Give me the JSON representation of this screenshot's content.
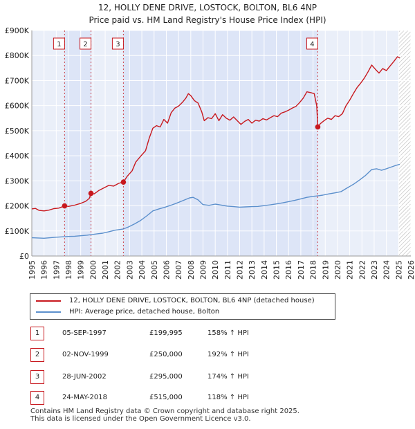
{
  "chart_data": {
    "type": "line",
    "title_line1": "12, HOLLY DENE DRIVE, LOSTOCK, BOLTON, BL6 4NP",
    "title_line2": "Price paid vs. HM Land Registry's House Price Index (HPI)",
    "xlim": [
      1995,
      2026
    ],
    "ylim": [
      0,
      900000
    ],
    "x_ticks": [
      1995,
      1996,
      1997,
      1998,
      1999,
      2000,
      2001,
      2002,
      2003,
      2004,
      2005,
      2006,
      2007,
      2008,
      2009,
      2010,
      2011,
      2012,
      2013,
      2014,
      2015,
      2016,
      2017,
      2018,
      2019,
      2020,
      2021,
      2022,
      2023,
      2024,
      2025,
      2026
    ],
    "y_ticks": [
      {
        "value": 0,
        "label": "£0"
      },
      {
        "value": 100000,
        "label": "£100K"
      },
      {
        "value": 200000,
        "label": "£200K"
      },
      {
        "value": 300000,
        "label": "£300K"
      },
      {
        "value": 400000,
        "label": "£400K"
      },
      {
        "value": 500000,
        "label": "£500K"
      },
      {
        "value": 600000,
        "label": "£600K"
      },
      {
        "value": 700000,
        "label": "£700K"
      },
      {
        "value": 800000,
        "label": "£800K"
      },
      {
        "value": 900000,
        "label": "£900K"
      }
    ],
    "shaded_ranges": [
      [
        1997.68,
        1999.84
      ],
      [
        2002.49,
        2018.39
      ]
    ],
    "hatched_from": 2025.0,
    "series": [
      {
        "name": "12, HOLLY DENE DRIVE, LOSTOCK, BOLTON, BL6 4NP (detached house)",
        "color": "#c8181e",
        "points": [
          [
            1995.0,
            188000
          ],
          [
            1995.3,
            190000
          ],
          [
            1995.6,
            182000
          ],
          [
            1996.0,
            180000
          ],
          [
            1996.4,
            183000
          ],
          [
            1996.8,
            189000
          ],
          [
            1997.2,
            191000
          ],
          [
            1997.68,
            199995
          ],
          [
            1998.0,
            198000
          ],
          [
            1998.5,
            203000
          ],
          [
            1999.0,
            210000
          ],
          [
            1999.4,
            218000
          ],
          [
            1999.7,
            230000
          ],
          [
            1999.84,
            250000
          ],
          [
            2000.1,
            248000
          ],
          [
            2000.5,
            262000
          ],
          [
            2000.9,
            272000
          ],
          [
            2001.3,
            282000
          ],
          [
            2001.7,
            279000
          ],
          [
            2002.1,
            290000
          ],
          [
            2002.49,
            295000
          ],
          [
            2002.8,
            318000
          ],
          [
            2003.2,
            340000
          ],
          [
            2003.5,
            375000
          ],
          [
            2003.9,
            398000
          ],
          [
            2004.3,
            420000
          ],
          [
            2004.6,
            470000
          ],
          [
            2004.9,
            510000
          ],
          [
            2005.2,
            520000
          ],
          [
            2005.5,
            515000
          ],
          [
            2005.8,
            545000
          ],
          [
            2006.1,
            530000
          ],
          [
            2006.4,
            572000
          ],
          [
            2006.7,
            590000
          ],
          [
            2007.0,
            598000
          ],
          [
            2007.3,
            612000
          ],
          [
            2007.6,
            630000
          ],
          [
            2007.8,
            648000
          ],
          [
            2008.0,
            640000
          ],
          [
            2008.3,
            620000
          ],
          [
            2008.6,
            610000
          ],
          [
            2008.9,
            575000
          ],
          [
            2009.1,
            540000
          ],
          [
            2009.4,
            552000
          ],
          [
            2009.7,
            548000
          ],
          [
            2010.0,
            568000
          ],
          [
            2010.3,
            540000
          ],
          [
            2010.6,
            564000
          ],
          [
            2010.9,
            550000
          ],
          [
            2011.2,
            542000
          ],
          [
            2011.5,
            555000
          ],
          [
            2011.8,
            540000
          ],
          [
            2012.1,
            525000
          ],
          [
            2012.4,
            537000
          ],
          [
            2012.7,
            545000
          ],
          [
            2013.0,
            530000
          ],
          [
            2013.3,
            542000
          ],
          [
            2013.6,
            538000
          ],
          [
            2013.9,
            548000
          ],
          [
            2014.2,
            543000
          ],
          [
            2014.5,
            552000
          ],
          [
            2014.8,
            560000
          ],
          [
            2015.1,
            556000
          ],
          [
            2015.4,
            570000
          ],
          [
            2015.7,
            575000
          ],
          [
            2016.0,
            582000
          ],
          [
            2016.3,
            590000
          ],
          [
            2016.6,
            597000
          ],
          [
            2016.9,
            612000
          ],
          [
            2017.2,
            630000
          ],
          [
            2017.5,
            655000
          ],
          [
            2017.8,
            652000
          ],
          [
            2018.1,
            648000
          ],
          [
            2018.3,
            600000
          ],
          [
            2018.39,
            515000
          ],
          [
            2018.6,
            528000
          ],
          [
            2018.9,
            540000
          ],
          [
            2019.2,
            550000
          ],
          [
            2019.5,
            545000
          ],
          [
            2019.8,
            560000
          ],
          [
            2020.1,
            556000
          ],
          [
            2020.4,
            568000
          ],
          [
            2020.7,
            600000
          ],
          [
            2021.0,
            622000
          ],
          [
            2021.3,
            648000
          ],
          [
            2021.6,
            672000
          ],
          [
            2021.9,
            690000
          ],
          [
            2022.2,
            710000
          ],
          [
            2022.5,
            735000
          ],
          [
            2022.8,
            762000
          ],
          [
            2023.1,
            745000
          ],
          [
            2023.4,
            730000
          ],
          [
            2023.7,
            748000
          ],
          [
            2024.0,
            740000
          ],
          [
            2024.3,
            758000
          ],
          [
            2024.6,
            776000
          ],
          [
            2024.9,
            795000
          ],
          [
            2025.1,
            790000
          ]
        ]
      },
      {
        "name": "HPI: Average price, detached house, Bolton",
        "color": "#5b8fcc",
        "points": [
          [
            1995.0,
            73000
          ],
          [
            1995.5,
            72000
          ],
          [
            1996.0,
            71000
          ],
          [
            1996.5,
            73000
          ],
          [
            1997.0,
            75000
          ],
          [
            1997.68,
            77000
          ],
          [
            1998.0,
            78000
          ],
          [
            1998.5,
            79000
          ],
          [
            1999.0,
            81000
          ],
          [
            1999.5,
            83000
          ],
          [
            1999.84,
            85000
          ],
          [
            2000.3,
            88000
          ],
          [
            2000.8,
            91000
          ],
          [
            2001.3,
            97000
          ],
          [
            2001.8,
            103000
          ],
          [
            2002.49,
            108000
          ],
          [
            2002.9,
            116000
          ],
          [
            2003.4,
            128000
          ],
          [
            2003.9,
            142000
          ],
          [
            2004.4,
            160000
          ],
          [
            2004.9,
            180000
          ],
          [
            2005.4,
            188000
          ],
          [
            2005.9,
            195000
          ],
          [
            2006.4,
            203000
          ],
          [
            2006.9,
            212000
          ],
          [
            2007.4,
            222000
          ],
          [
            2007.9,
            232000
          ],
          [
            2008.2,
            234000
          ],
          [
            2008.6,
            224000
          ],
          [
            2009.0,
            205000
          ],
          [
            2009.5,
            202000
          ],
          [
            2010.0,
            207000
          ],
          [
            2010.5,
            203000
          ],
          [
            2011.0,
            199000
          ],
          [
            2011.5,
            197000
          ],
          [
            2012.0,
            195000
          ],
          [
            2012.5,
            196000
          ],
          [
            2013.0,
            197000
          ],
          [
            2013.5,
            198000
          ],
          [
            2014.0,
            201000
          ],
          [
            2014.5,
            204000
          ],
          [
            2015.0,
            208000
          ],
          [
            2015.5,
            212000
          ],
          [
            2016.0,
            217000
          ],
          [
            2016.5,
            222000
          ],
          [
            2017.0,
            228000
          ],
          [
            2017.5,
            234000
          ],
          [
            2018.0,
            238000
          ],
          [
            2018.39,
            240000
          ],
          [
            2018.8,
            243000
          ],
          [
            2019.3,
            248000
          ],
          [
            2019.8,
            252000
          ],
          [
            2020.3,
            257000
          ],
          [
            2020.8,
            272000
          ],
          [
            2021.3,
            286000
          ],
          [
            2021.8,
            303000
          ],
          [
            2022.3,
            322000
          ],
          [
            2022.8,
            345000
          ],
          [
            2023.2,
            348000
          ],
          [
            2023.6,
            342000
          ],
          [
            2024.0,
            348000
          ],
          [
            2024.4,
            355000
          ],
          [
            2024.8,
            362000
          ],
          [
            2025.1,
            366000
          ]
        ]
      }
    ],
    "markers": [
      {
        "label": "1",
        "x": 1997.68,
        "y": 199995
      },
      {
        "label": "2",
        "x": 1999.84,
        "y": 250000
      },
      {
        "label": "3",
        "x": 2002.49,
        "y": 295000
      },
      {
        "label": "4",
        "x": 2018.39,
        "y": 515000
      }
    ]
  },
  "transactions": [
    {
      "num": "1",
      "date": "05-SEP-1997",
      "price": "£199,995",
      "hpi": "158% ↑ HPI"
    },
    {
      "num": "2",
      "date": "02-NOV-1999",
      "price": "£250,000",
      "hpi": "192% ↑ HPI"
    },
    {
      "num": "3",
      "date": "28-JUN-2002",
      "price": "£295,000",
      "hpi": "174% ↑ HPI"
    },
    {
      "num": "4",
      "date": "24-MAY-2018",
      "price": "£515,000",
      "hpi": "118% ↑ HPI"
    }
  ],
  "footer": {
    "line1": "Contains HM Land Registry data © Crown copyright and database right 2025.",
    "line2": "This data is licensed under the Open Government Licence v3.0."
  },
  "colors": {
    "red": "#c8181e",
    "blue": "#5b8fcc",
    "shade": "#dde5f7",
    "grid": "#ffffff",
    "plot_bg": "#eaeff9"
  }
}
